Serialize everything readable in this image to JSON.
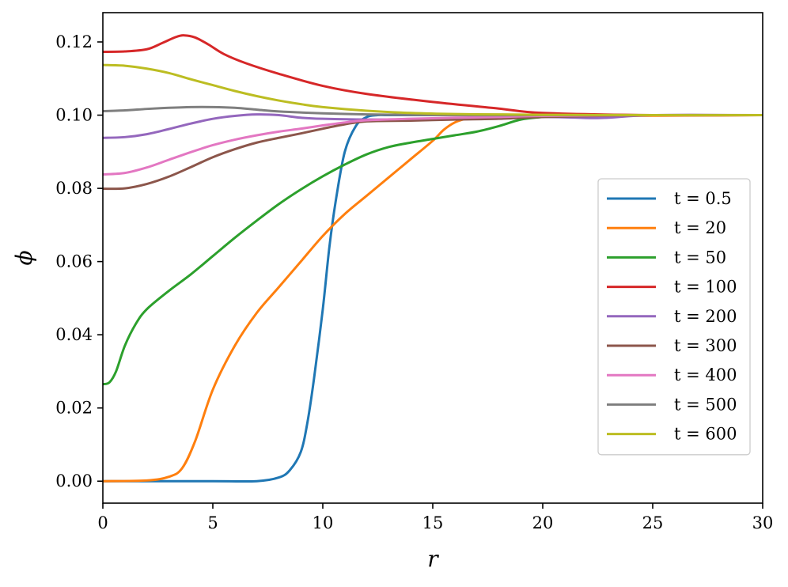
{
  "chart_data": {
    "type": "line",
    "title": "",
    "xlabel": "r",
    "ylabel": "ϕ",
    "xlim": [
      0,
      30
    ],
    "ylim": [
      -0.006,
      0.128
    ],
    "xticks": [
      0,
      5,
      10,
      15,
      20,
      25,
      30
    ],
    "xtick_labels": [
      "0",
      "5",
      "10",
      "15",
      "20",
      "25",
      "30"
    ],
    "yticks": [
      0.0,
      0.02,
      0.04,
      0.06,
      0.08,
      0.1,
      0.12
    ],
    "ytick_labels": [
      "0.00",
      "0.02",
      "0.04",
      "0.06",
      "0.08",
      "0.10",
      "0.12"
    ],
    "grid": false,
    "legend_position": "lower-right",
    "series": [
      {
        "name": "t = 0.5",
        "color": "#1f77b4",
        "x": [
          0,
          5,
          7,
          8,
          8.5,
          9,
          9.3,
          9.6,
          10,
          10.3,
          10.6,
          11,
          11.5,
          12,
          12.5,
          13,
          15,
          20,
          30
        ],
        "y": [
          0,
          0,
          0,
          0.001,
          0.003,
          0.008,
          0.016,
          0.028,
          0.047,
          0.064,
          0.077,
          0.09,
          0.097,
          0.0995,
          0.1,
          0.1,
          0.1,
          0.1,
          0.1
        ]
      },
      {
        "name": "t = 20",
        "color": "#ff7f0e",
        "x": [
          0,
          2,
          3,
          3.6,
          4.2,
          5,
          6,
          7,
          8,
          9,
          10,
          11,
          12,
          13,
          14,
          15,
          15.5,
          16,
          16.5,
          17,
          20,
          30
        ],
        "y": [
          0,
          0.0002,
          0.0012,
          0.0035,
          0.011,
          0.025,
          0.037,
          0.046,
          0.053,
          0.06,
          0.067,
          0.073,
          0.078,
          0.083,
          0.088,
          0.093,
          0.096,
          0.098,
          0.099,
          0.0995,
          0.0997,
          0.1
        ]
      },
      {
        "name": "t = 50",
        "color": "#2ca02c",
        "x": [
          0,
          0.3,
          0.6,
          1,
          1.5,
          2,
          3,
          4,
          5,
          6,
          7,
          8,
          9,
          10,
          11,
          12,
          13,
          14,
          15,
          16,
          17,
          18,
          19,
          20,
          21,
          25,
          30
        ],
        "y": [
          0.0265,
          0.027,
          0.03,
          0.037,
          0.043,
          0.047,
          0.052,
          0.0565,
          0.0615,
          0.0665,
          0.0712,
          0.0757,
          0.0797,
          0.0833,
          0.0865,
          0.0893,
          0.0913,
          0.0925,
          0.0935,
          0.0945,
          0.0955,
          0.097,
          0.0988,
          0.0995,
          0.1,
          0.1,
          0.1
        ]
      },
      {
        "name": "t = 100",
        "color": "#d62728",
        "x": [
          0,
          1,
          2,
          2.7,
          3.3,
          3.7,
          4.2,
          4.8,
          5.5,
          6.5,
          8,
          10,
          12,
          15,
          18,
          20,
          25,
          30
        ],
        "y": [
          0.1173,
          0.1174,
          0.118,
          0.1197,
          0.1213,
          0.1218,
          0.1212,
          0.1193,
          0.1167,
          0.1142,
          0.1113,
          0.108,
          0.1058,
          0.1036,
          0.1018,
          0.1006,
          0.1,
          0.1
        ]
      },
      {
        "name": "t = 200",
        "color": "#9467bd",
        "x": [
          0,
          1,
          2,
          3,
          4,
          5,
          6,
          7,
          8,
          9,
          10,
          12,
          15,
          20,
          22.5,
          25,
          30
        ],
        "y": [
          0.0938,
          0.094,
          0.0948,
          0.0962,
          0.0977,
          0.099,
          0.0998,
          0.1002,
          0.1,
          0.0993,
          0.099,
          0.0988,
          0.0989,
          0.0995,
          0.0992,
          0.1,
          0.1
        ]
      },
      {
        "name": "t = 300",
        "color": "#8c564b",
        "x": [
          0,
          1,
          2,
          3,
          4,
          5,
          6,
          7,
          8,
          9,
          10,
          11,
          12,
          14,
          16,
          18,
          20,
          25,
          30
        ],
        "y": [
          0.0799,
          0.08,
          0.0812,
          0.0832,
          0.0858,
          0.0885,
          0.0907,
          0.0925,
          0.0938,
          0.095,
          0.0963,
          0.0975,
          0.0983,
          0.0985,
          0.0988,
          0.099,
          0.0995,
          0.1,
          0.1
        ]
      },
      {
        "name": "t = 400",
        "color": "#e377c2",
        "x": [
          0,
          1,
          2,
          3,
          4,
          5,
          6,
          7,
          8,
          9,
          10,
          11,
          12,
          14,
          16,
          18,
          20,
          25,
          30
        ],
        "y": [
          0.0838,
          0.0842,
          0.0857,
          0.0878,
          0.0899,
          0.0918,
          0.0933,
          0.0945,
          0.0955,
          0.0963,
          0.0972,
          0.098,
          0.0986,
          0.099,
          0.0993,
          0.0995,
          0.0998,
          0.1,
          0.1
        ]
      },
      {
        "name": "t = 500",
        "color": "#7f7f7f",
        "x": [
          0,
          1,
          2,
          3,
          4,
          5,
          6,
          7,
          8,
          10,
          12,
          15,
          20,
          25,
          30
        ],
        "y": [
          0.1011,
          0.1013,
          0.1017,
          0.102,
          0.1022,
          0.1022,
          0.102,
          0.1015,
          0.101,
          0.1005,
          0.1002,
          0.1,
          0.1,
          0.1,
          0.1
        ]
      },
      {
        "name": "t = 600",
        "color": "#bcbd22",
        "x": [
          0,
          1,
          2,
          3,
          4,
          5,
          6,
          7,
          8,
          9,
          10,
          12,
          14,
          16,
          18,
          20,
          25,
          30
        ],
        "y": [
          0.1137,
          0.1135,
          0.1127,
          0.1115,
          0.1098,
          0.1082,
          0.1066,
          0.1052,
          0.104,
          0.103,
          0.1022,
          0.1012,
          0.1006,
          0.1003,
          0.1002,
          0.1001,
          0.1,
          0.1
        ]
      }
    ]
  }
}
